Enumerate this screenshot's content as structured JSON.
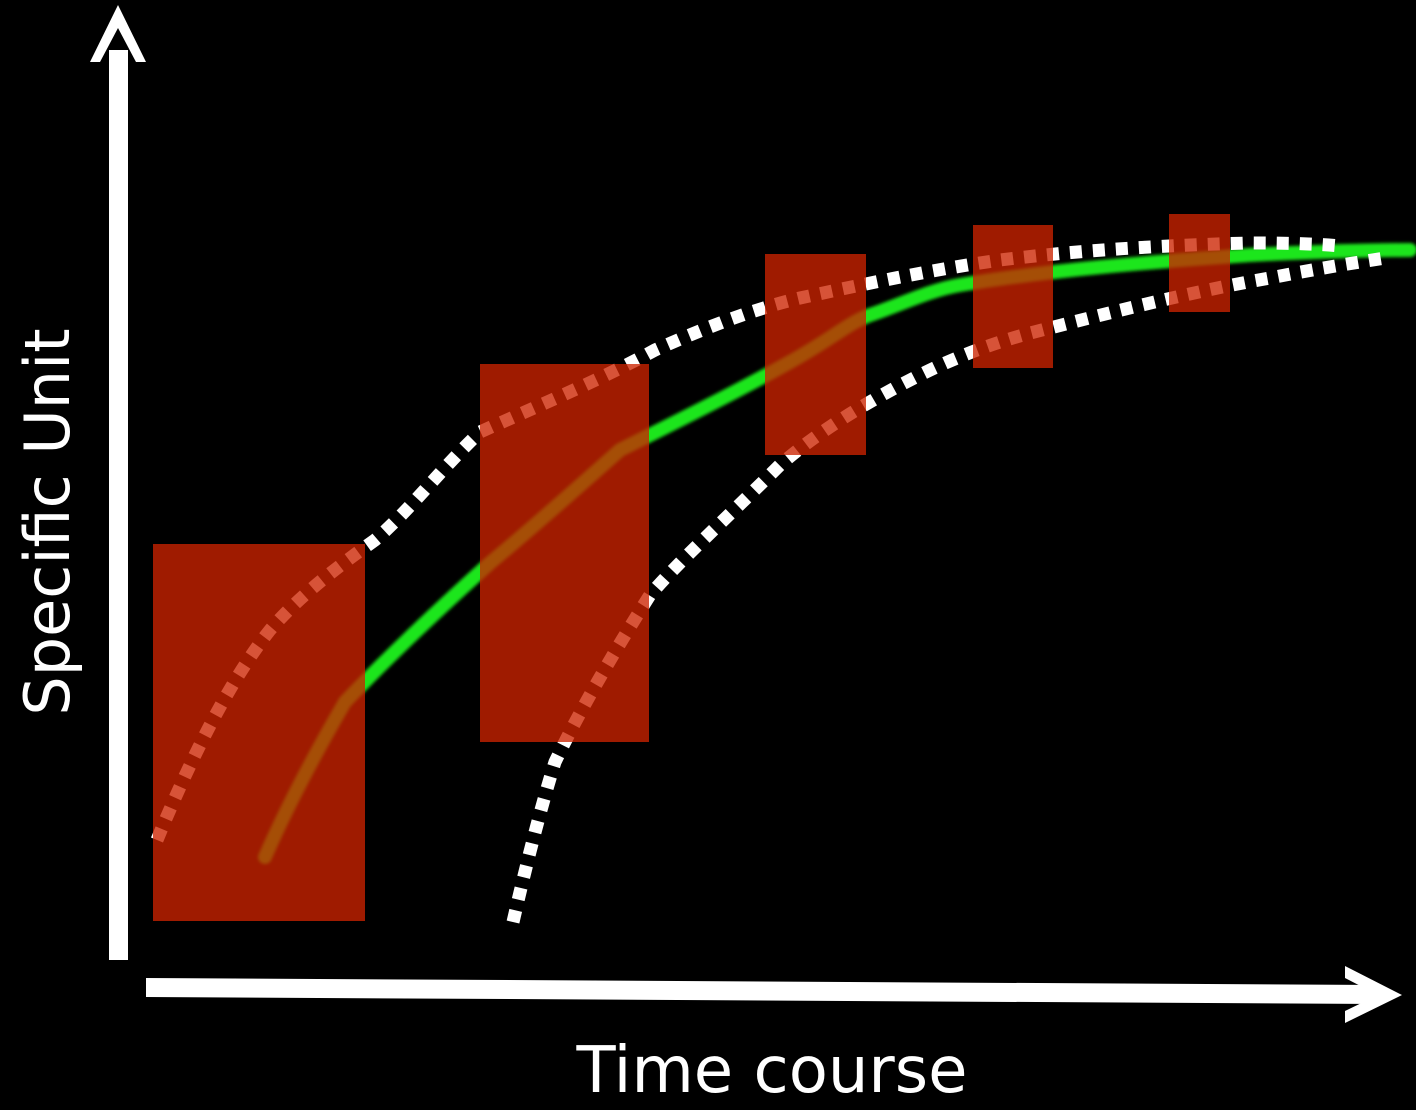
{
  "diagram": {
    "x_axis_label": "Time course",
    "y_axis_label": "Specific Unit",
    "colors": {
      "background": "#000000",
      "axes": "#ffffff",
      "mean_curve": "#1ee61e",
      "bounds": "#ffffff",
      "boxes": "#cc2200"
    },
    "elements": [
      "vertical-axis-arrow",
      "horizontal-axis-arrow",
      "green-mean-curve",
      "upper-dotted-bound",
      "lower-dotted-bound",
      "red-range-boxes"
    ]
  }
}
